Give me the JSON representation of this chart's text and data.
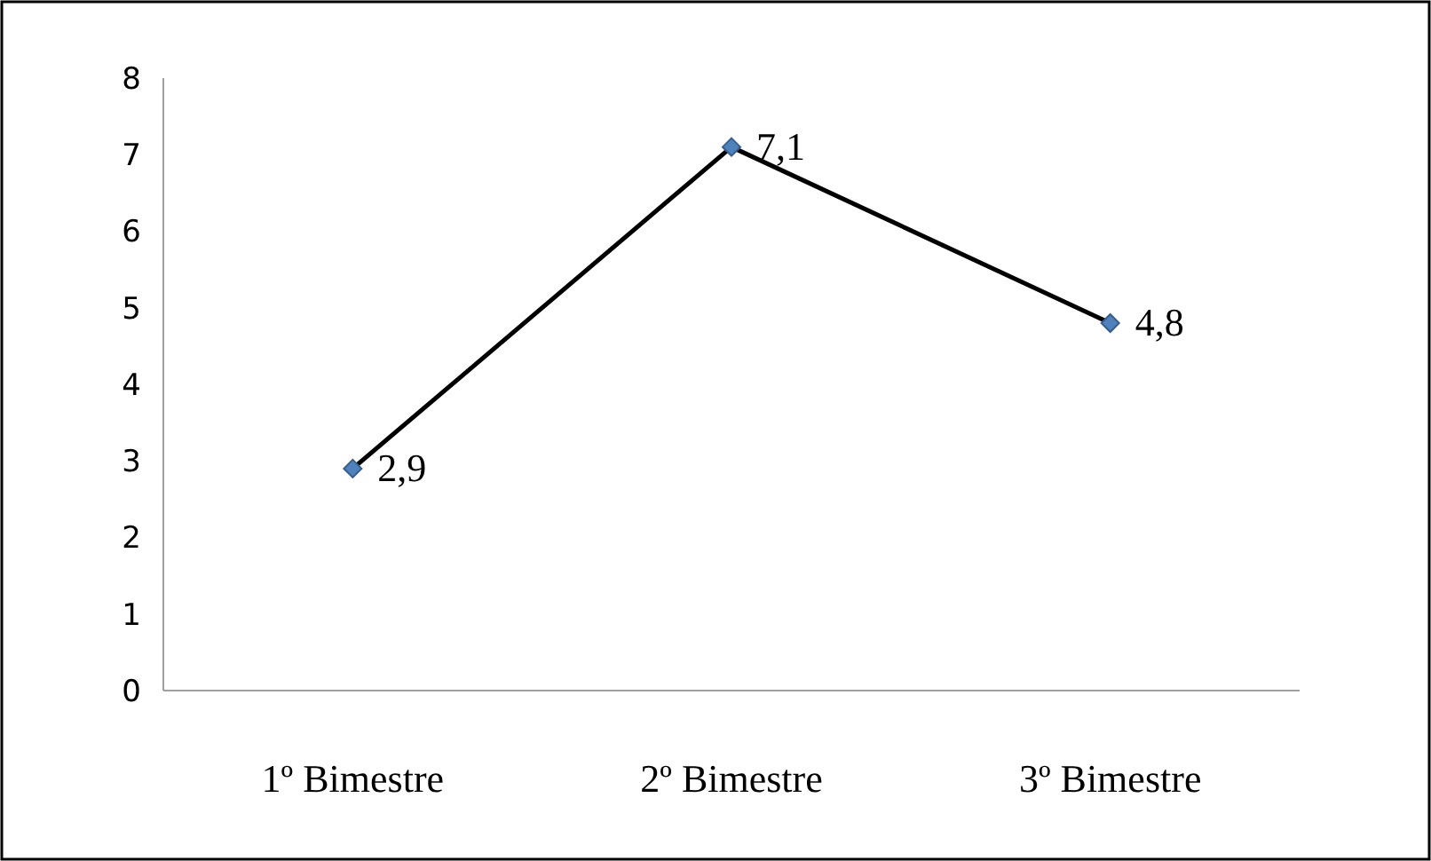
{
  "chart_data": {
    "type": "line",
    "categories": [
      "1º Bimestre",
      "2º Bimestre",
      "3º Bimestre"
    ],
    "series": [
      {
        "color": "#000000",
        "values": [
          2.9,
          7.1,
          4.8
        ],
        "value_labels": [
          "2,9",
          "7,1",
          "4,8"
        ]
      }
    ],
    "ylim": [
      0,
      8
    ],
    "yticks": [
      0,
      1,
      2,
      3,
      4,
      5,
      6,
      7,
      8
    ],
    "marker": "diamond",
    "line_style": "solid"
  }
}
